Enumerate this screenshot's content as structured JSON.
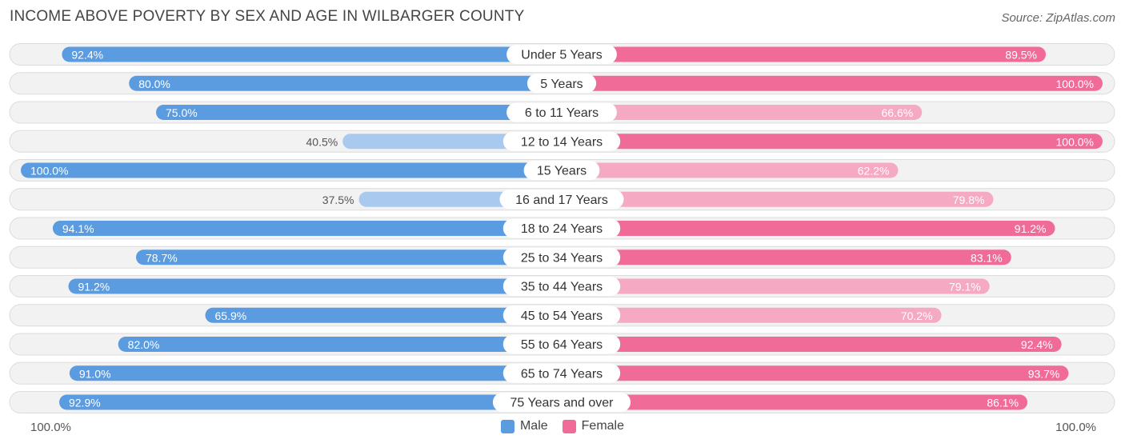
{
  "title": "INCOME ABOVE POVERTY BY SEX AND AGE IN WILBARGER COUNTY",
  "source": "Source: ZipAtlas.com",
  "colors": {
    "male_strong": "#5b9be0",
    "male_light": "#a9c9ef",
    "female_strong": "#f06b97",
    "female_light": "#f6a9c3",
    "track": "#efefef"
  },
  "axis": {
    "left_label": "100.0%",
    "right_label": "100.0%"
  },
  "legend": {
    "male": "Male",
    "female": "Female"
  },
  "chart_data": {
    "type": "bar",
    "orientation": "horizontal-diverging",
    "title": "INCOME ABOVE POVERTY BY SEX AND AGE IN WILBARGER COUNTY",
    "xlim": [
      0,
      100
    ],
    "unit": "%",
    "categories": [
      "Under 5 Years",
      "5 Years",
      "6 to 11 Years",
      "12 to 14 Years",
      "15 Years",
      "16 and 17 Years",
      "18 to 24 Years",
      "25 to 34 Years",
      "35 to 44 Years",
      "45 to 54 Years",
      "55 to 64 Years",
      "65 to 74 Years",
      "75 Years and over"
    ],
    "series": [
      {
        "name": "Male",
        "values": [
          92.4,
          80.0,
          75.0,
          40.5,
          100.0,
          37.5,
          94.1,
          78.7,
          91.2,
          65.9,
          82.0,
          91.0,
          92.9
        ],
        "labels": [
          "92.4%",
          "80.0%",
          "75.0%",
          "40.5%",
          "100.0%",
          "37.5%",
          "94.1%",
          "78.7%",
          "91.2%",
          "65.9%",
          "82.0%",
          "91.0%",
          "92.9%"
        ]
      },
      {
        "name": "Female",
        "values": [
          89.5,
          100.0,
          66.6,
          100.0,
          62.2,
          79.8,
          91.2,
          83.1,
          79.1,
          70.2,
          92.4,
          93.7,
          86.1
        ],
        "labels": [
          "89.5%",
          "100.0%",
          "66.6%",
          "100.0%",
          "62.2%",
          "79.8%",
          "91.2%",
          "83.1%",
          "79.1%",
          "70.2%",
          "92.4%",
          "93.7%",
          "86.1%"
        ]
      }
    ]
  }
}
